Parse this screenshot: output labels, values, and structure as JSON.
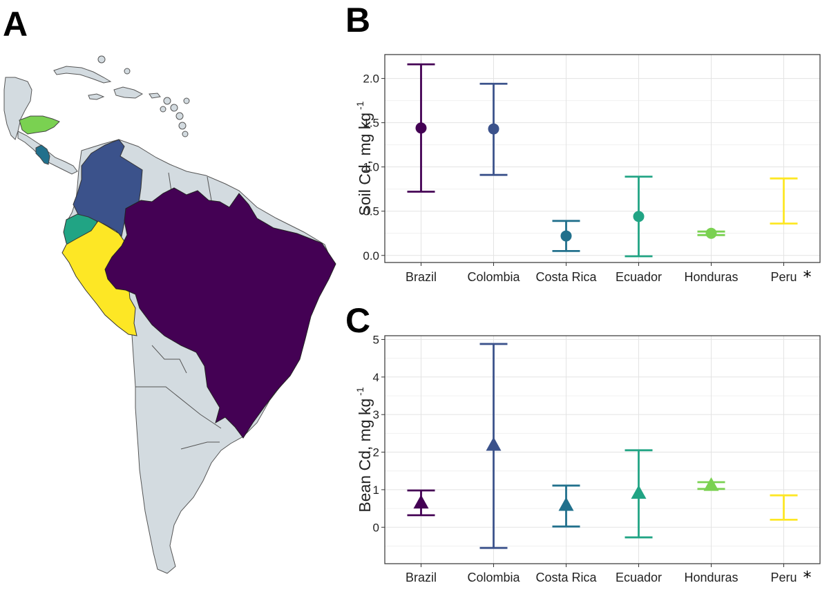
{
  "panels": {
    "a": {
      "letter": "A"
    },
    "b": {
      "letter": "B"
    },
    "c": {
      "letter": "C"
    }
  },
  "colors": {
    "Brazil": "#440154",
    "Colombia": "#3b528b",
    "Costa Rica": "#21708c",
    "Ecuador": "#21a484",
    "Honduras": "#7ad151",
    "Peru": "#fde725",
    "other_land": "#d3dbe0"
  },
  "map": {
    "countries": [
      "Brazil",
      "Colombia",
      "Costa Rica",
      "Ecuador",
      "Honduras",
      "Peru"
    ]
  },
  "chart_data": [
    {
      "panel": "B",
      "type": "errorbar",
      "marker": "circle",
      "categories": [
        "Brazil",
        "Colombia",
        "Costa Rica",
        "Ecuador",
        "Honduras",
        "Peru"
      ],
      "category_suffix": {
        "Peru": "*"
      },
      "values": [
        1.44,
        1.43,
        0.22,
        0.44,
        0.25,
        null
      ],
      "lower": [
        0.72,
        0.91,
        0.05,
        -0.01,
        0.23,
        0.36
      ],
      "upper": [
        2.16,
        1.94,
        0.39,
        0.89,
        0.27,
        0.87
      ],
      "ylabel": "Soil Cd, mg kg",
      "ylabel_sup": "-1",
      "ylim": [
        -0.08,
        2.27
      ],
      "yticks": [
        "0.0",
        "0.5",
        "1.0",
        "1.5",
        "2.0"
      ],
      "ytick_values": [
        0,
        0.5,
        1,
        1.5,
        2
      ],
      "grid": true
    },
    {
      "panel": "C",
      "type": "errorbar",
      "marker": "triangle",
      "categories": [
        "Brazil",
        "Colombia",
        "Costa Rica",
        "Ecuador",
        "Honduras",
        "Peru"
      ],
      "category_suffix": {
        "Peru": "*"
      },
      "values": [
        0.66,
        2.2,
        0.6,
        0.92,
        1.13,
        null
      ],
      "lower": [
        0.32,
        -0.55,
        0.02,
        -0.27,
        1.02,
        0.2
      ],
      "upper": [
        0.98,
        4.88,
        1.11,
        2.05,
        1.2,
        0.85
      ],
      "ylabel": "Bean Cd, mg kg",
      "ylabel_sup": "-1",
      "ylim": [
        -0.97,
        5.1
      ],
      "yticks": [
        "0",
        "1",
        "2",
        "3",
        "4",
        "5"
      ],
      "ytick_values": [
        0,
        1,
        2,
        3,
        4,
        5
      ],
      "grid": true
    }
  ]
}
